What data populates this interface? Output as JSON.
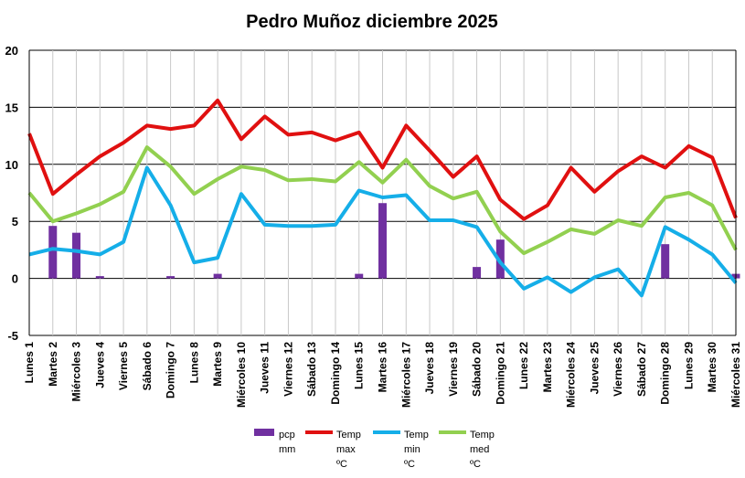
{
  "chart_data": {
    "type": "bar+line",
    "title": "Pedro Muñoz diciembre 2025",
    "xlabel": "",
    "ylabel": "",
    "ylim": [
      -5,
      20
    ],
    "yticks": [
      -5,
      0,
      5,
      10,
      15,
      20
    ],
    "grid": true,
    "legend_position": "bottom",
    "categories": [
      "Lunes 1",
      "Martes 2",
      "Miércoles 3",
      "Jueves 4",
      "Viernes 5",
      "Sábado 6",
      "Domingo 7",
      "Lunes 8",
      "Martes 9",
      "Miércoles 10",
      "Jueves 11",
      "Viernes 12",
      "Sábado 13",
      "Domingo 14",
      "Lunes 15",
      "Martes 16",
      "Miércoles 17",
      "Jueves 18",
      "Viernes 19",
      "Sábado 20",
      "Domingo 21",
      "Lunes 22",
      "Martes 23",
      "Miércoles 24",
      "Jueves 25",
      "Viernes 26",
      "Sábado 27",
      "Domingo 28",
      "Lunes 29",
      "Martes 30",
      "Miércoles 31"
    ],
    "series": [
      {
        "name": "pcp mm",
        "legend_lines": [
          "pcp",
          "mm"
        ],
        "kind": "bar",
        "color": "#7030A0",
        "values": [
          0,
          4.6,
          4.0,
          0.2,
          0,
          0,
          0.2,
          0,
          0.4,
          0,
          0,
          0,
          0,
          0,
          0.4,
          6.6,
          0,
          0,
          0,
          1.0,
          3.4,
          0,
          0,
          0,
          0,
          0,
          0,
          3.0,
          0,
          0,
          0.4
        ]
      },
      {
        "name": "Temp max ºC",
        "legend_lines": [
          "Temp",
          "max",
          "ºC"
        ],
        "kind": "line",
        "color": "#E01010",
        "values": [
          12.7,
          7.4,
          9.1,
          10.7,
          11.9,
          13.4,
          13.1,
          13.4,
          15.6,
          12.2,
          14.2,
          12.6,
          12.8,
          12.1,
          12.8,
          9.7,
          13.4,
          11.2,
          8.9,
          10.7,
          6.9,
          5.2,
          6.4,
          9.7,
          7.6,
          9.4,
          10.7,
          9.7,
          11.6,
          10.6,
          5.3
        ]
      },
      {
        "name": "Temp min ºC",
        "legend_lines": [
          "Temp",
          "min",
          "ºC"
        ],
        "kind": "line",
        "color": "#15AEE8",
        "values": [
          2.1,
          2.6,
          2.4,
          2.1,
          3.2,
          9.7,
          6.4,
          1.4,
          1.8,
          7.4,
          4.7,
          4.6,
          4.6,
          4.7,
          7.7,
          7.1,
          7.3,
          5.1,
          5.1,
          4.5,
          1.4,
          -0.9,
          0.1,
          -1.2,
          0.1,
          0.8,
          -1.5,
          4.5,
          3.4,
          2.1,
          -0.4
        ]
      },
      {
        "name": "Temp med ºC",
        "legend_lines": [
          "Temp",
          "med",
          "ºC"
        ],
        "kind": "line",
        "color": "#92D050",
        "values": [
          7.5,
          5.0,
          5.7,
          6.5,
          7.6,
          11.5,
          9.8,
          7.4,
          8.7,
          9.8,
          9.5,
          8.6,
          8.7,
          8.5,
          10.2,
          8.4,
          10.4,
          8.1,
          7.0,
          7.6,
          4.1,
          2.2,
          3.2,
          4.3,
          3.9,
          5.1,
          4.6,
          7.1,
          7.5,
          6.4,
          2.5
        ]
      }
    ]
  }
}
